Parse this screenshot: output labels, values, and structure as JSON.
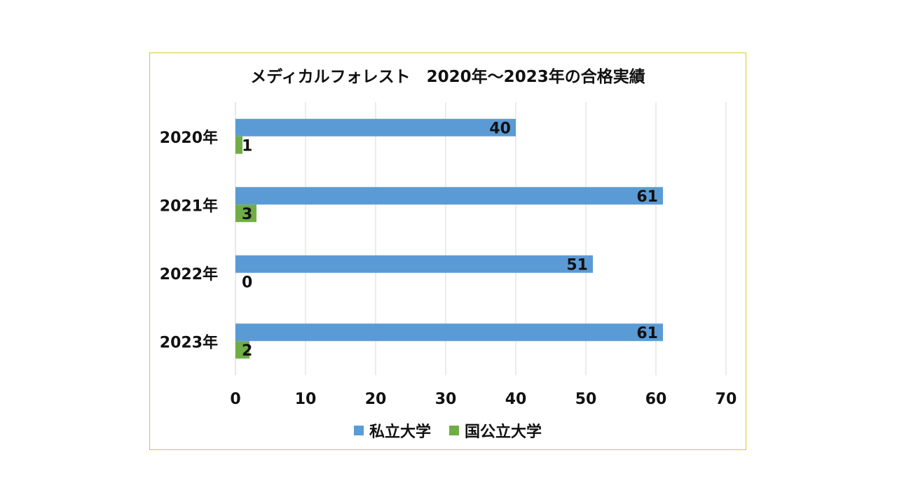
{
  "chart_data": {
    "type": "bar",
    "orientation": "horizontal",
    "title": "メディカルフォレスト　2020年～2023年の合格実績",
    "categories": [
      "2020年",
      "2021年",
      "2022年",
      "2023年"
    ],
    "series": [
      {
        "name": "私立大学",
        "values": [
          40,
          61,
          51,
          61
        ],
        "color": "#5b9bd5"
      },
      {
        "name": "国公立大学",
        "values": [
          1,
          3,
          0,
          2
        ],
        "color": "#70ad47"
      }
    ],
    "xlim": [
      0,
      70
    ],
    "x_ticks": [
      0,
      10,
      20,
      30,
      40,
      50,
      60,
      70
    ],
    "xlabel": "",
    "ylabel": "",
    "grid": "vertical",
    "legend": "bottom",
    "data_labels": true,
    "frame_border_color": "#d9c43a"
  }
}
